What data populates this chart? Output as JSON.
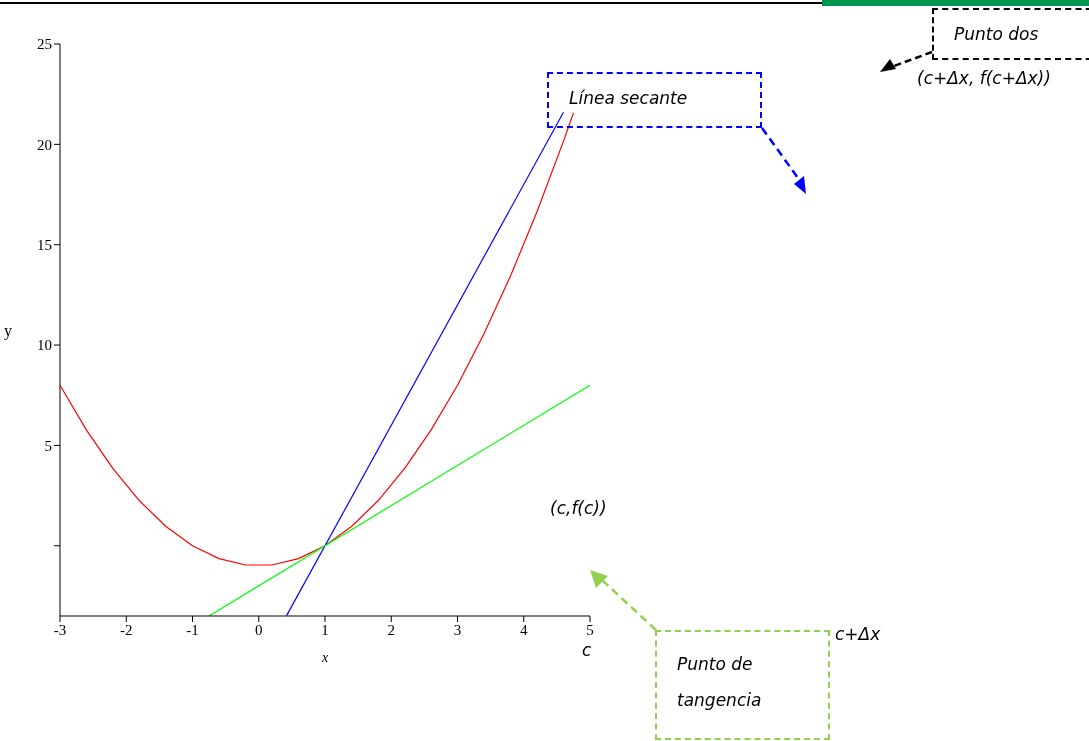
{
  "chart_data": {
    "type": "line",
    "xlabel": "x",
    "ylabel": "y",
    "xlim": [
      -3,
      5
    ],
    "xticks": [
      -3,
      -2,
      -1,
      0,
      1,
      2,
      3,
      4,
      5
    ],
    "ylim": [
      -3.5,
      25
    ],
    "yticks": [
      {
        "value": 0,
        "label": null
      },
      5,
      10,
      15,
      20,
      25
    ],
    "grid": false,
    "legend": false,
    "marker": "none",
    "line_style": "solid",
    "series": [
      {
        "color": "#ff0000",
        "x": [
          -3,
          -2.6,
          -2.2,
          -1.8,
          -1.4,
          -1,
          -0.6,
          -0.2,
          0.2,
          0.6,
          1,
          1.4,
          1.8,
          2.2,
          2.6,
          3,
          3.4,
          3.8,
          4.2,
          4.6,
          4.75
        ],
        "values": [
          8,
          5.76,
          3.84,
          2.24,
          0.96,
          0,
          -0.64,
          -0.96,
          -0.96,
          -0.64,
          0,
          0.96,
          2.24,
          3.84,
          5.76,
          8,
          10.56,
          13.44,
          16.64,
          20.16,
          21.56
        ]
      },
      {
        "color": "#0000ff",
        "x": [
          0.42,
          4.6
        ],
        "values": [
          -3.48,
          21.6
        ]
      },
      {
        "color": "#00ff00",
        "x": [
          -0.75,
          5
        ],
        "values": [
          -3.5,
          8
        ]
      }
    ],
    "annotations": [
      "Línea secante",
      "Punto dos",
      "(c+Δx, f(c+Δx))",
      "(c,f(c))",
      "c",
      "c+Δx",
      "Punto de tangencia"
    ]
  }
}
